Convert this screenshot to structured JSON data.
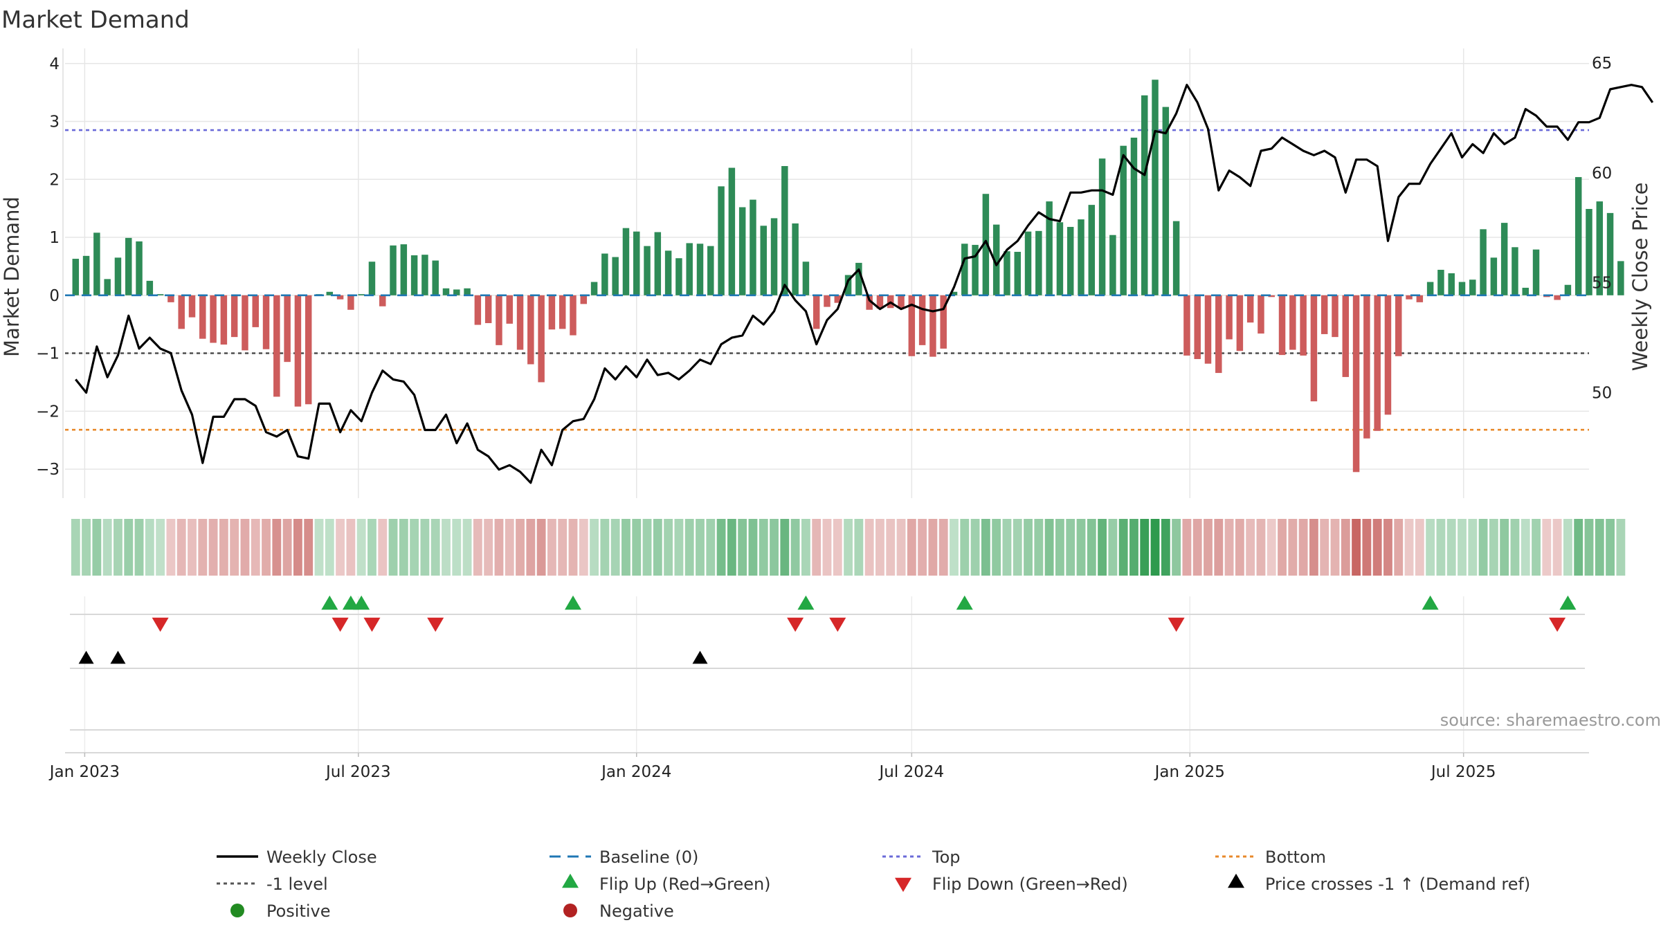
{
  "chart_data": {
    "type": "bar",
    "title": "Market Demand",
    "ylabel_left": "Market Demand",
    "ylabel_right": "Weekly Close Price",
    "y_left_range": [
      -3.5,
      4.2
    ],
    "y_right_range": [
      45.2,
      65.5
    ],
    "y_left_ticks": [
      4,
      3,
      2,
      1,
      0,
      -1,
      -2,
      -3
    ],
    "y_left_tick_labels": [
      "4",
      "3",
      "2",
      "1",
      "0",
      "−1",
      "−2",
      "−3"
    ],
    "y_right_ticks": [
      65,
      60,
      55,
      50
    ],
    "y_right_tick_labels": [
      "65",
      "60",
      "55",
      "50"
    ],
    "x_date_range": [
      "2022-12-19",
      "2025-09-22"
    ],
    "x_ticks": [
      {
        "date": "2023-01-01",
        "label": "Jan 2023"
      },
      {
        "date": "2023-07-01",
        "label": "Jul 2023"
      },
      {
        "date": "2024-01-01",
        "label": "Jan 2024"
      },
      {
        "date": "2024-07-01",
        "label": "Jul 2024"
      },
      {
        "date": "2025-01-01",
        "label": "Jan 2025"
      },
      {
        "date": "2025-07-01",
        "label": "Jul 2025"
      }
    ],
    "series": [
      {
        "name": "Market Demand",
        "start_date": "2022-12-26",
        "step_days": 7,
        "values": [
          0.63,
          0.68,
          1.08,
          0.28,
          0.65,
          0.99,
          0.93,
          0.25,
          0.02,
          -0.12,
          -0.58,
          -0.38,
          -0.75,
          -0.82,
          -0.85,
          -0.72,
          -0.95,
          -0.55,
          -0.93,
          -1.75,
          -1.15,
          -1.92,
          -1.88,
          0.02,
          0.06,
          -0.07,
          -0.25,
          0.02,
          0.58,
          -0.19,
          0.86,
          0.88,
          0.69,
          0.7,
          0.6,
          0.12,
          0.1,
          0.12,
          -0.51,
          -0.48,
          -0.86,
          -0.49,
          -0.94,
          -1.19,
          -1.5,
          -0.59,
          -0.58,
          -0.69,
          -0.15,
          0.23,
          0.72,
          0.66,
          1.16,
          1.1,
          0.85,
          1.09,
          0.77,
          0.64,
          0.9,
          0.89,
          0.85,
          1.88,
          2.2,
          1.52,
          1.65,
          1.2,
          1.33,
          2.23,
          1.24,
          0.58,
          -0.58,
          -0.2,
          -0.13,
          0.35,
          0.56,
          -0.25,
          -0.23,
          -0.22,
          -0.22,
          -1.05,
          -0.86,
          -1.06,
          -0.92,
          0.06,
          0.89,
          0.87,
          1.75,
          1.22,
          0.76,
          0.75,
          1.1,
          1.11,
          1.62,
          1.26,
          1.18,
          1.31,
          1.56,
          2.36,
          1.04,
          2.58,
          2.72,
          3.45,
          3.72,
          3.25,
          1.28,
          -1.04,
          -1.1,
          -1.18,
          -1.34,
          -0.76,
          -0.96,
          -0.47,
          -0.66,
          -0.03,
          -1.03,
          -0.94,
          -1.04,
          -1.83,
          -0.67,
          -0.72,
          -1.41,
          -3.05,
          -2.47,
          -2.34,
          -2.06,
          -1.05,
          -0.07,
          -0.12,
          0.23,
          0.44,
          0.38,
          0.23,
          0.27,
          1.14,
          0.65,
          1.25,
          0.83,
          0.13,
          0.79,
          -0.03,
          -0.08,
          0.18,
          2.04,
          1.49,
          1.62,
          1.42,
          0.59
        ]
      },
      {
        "name": "Weekly Close",
        "axis": "right",
        "start_date": "2022-12-26",
        "step_days": 7,
        "values": [
          50.6,
          50.0,
          52.1,
          50.7,
          51.7,
          53.5,
          52.0,
          52.5,
          52.0,
          51.8,
          50.1,
          49.0,
          46.8,
          48.9,
          48.9,
          49.7,
          49.7,
          49.4,
          48.2,
          48.0,
          48.3,
          47.1,
          47.0,
          49.5,
          49.5,
          48.2,
          49.2,
          48.7,
          50.0,
          51.0,
          50.6,
          50.5,
          49.9,
          48.3,
          48.3,
          49.0,
          47.7,
          48.6,
          47.4,
          47.1,
          46.5,
          46.7,
          46.4,
          45.9,
          47.4,
          46.7,
          48.3,
          48.7,
          48.8,
          49.7,
          51.1,
          50.6,
          51.2,
          50.7,
          51.5,
          50.8,
          50.9,
          50.6,
          51.0,
          51.5,
          51.3,
          52.2,
          52.5,
          52.6,
          53.5,
          53.1,
          53.7,
          54.9,
          54.2,
          53.7,
          52.2,
          53.3,
          53.8,
          55.1,
          55.6,
          54.2,
          53.8,
          54.1,
          53.8,
          54.0,
          53.8,
          53.7,
          53.8,
          54.8,
          56.1,
          56.2,
          56.9,
          55.8,
          56.5,
          56.9,
          57.6,
          58.2,
          57.9,
          57.8,
          59.1,
          59.1,
          59.2,
          59.2,
          59.0,
          60.8,
          60.2,
          59.9,
          61.9,
          61.8,
          62.7,
          64.0,
          63.2,
          62.0,
          59.2,
          60.1,
          59.8,
          59.4,
          61.0,
          61.1,
          61.6,
          61.3,
          61.0,
          60.8,
          61.0,
          60.7,
          59.1,
          60.6,
          60.6,
          60.3,
          56.9,
          58.9,
          59.5,
          59.5,
          60.4,
          61.1,
          61.8,
          60.7,
          61.3,
          60.9,
          61.8,
          61.3,
          61.6,
          62.9,
          62.6,
          62.1,
          62.1,
          61.5,
          62.3,
          62.3,
          62.5,
          63.8,
          63.9,
          64.0,
          63.9,
          63.2
        ]
      }
    ],
    "reference_lines": [
      {
        "name": "Baseline (0)",
        "value": 0,
        "color": "#1f77b4",
        "style": "dashed"
      },
      {
        "name": "Top",
        "value": 2.85,
        "color": "#6a6ad8",
        "style": "dotted"
      },
      {
        "name": "Bottom",
        "value": -2.32,
        "color": "#e8892a",
        "style": "dotted"
      },
      {
        "name": "-1 level",
        "value": -1,
        "color": "#555555",
        "style": "dotted"
      }
    ],
    "events": {
      "flip_up": [
        24,
        26,
        27,
        47,
        69,
        84,
        128,
        141
      ],
      "flip_down": [
        8,
        25,
        28,
        34,
        68,
        72,
        104,
        140
      ],
      "price_cross": [
        1,
        4,
        59
      ]
    },
    "colors": {
      "positive": "#2e8b57",
      "negative": "#cd5c5c",
      "price": "#000000",
      "flip_up": "#22a843",
      "flip_down": "#d62728",
      "legend_positive": "#228b22",
      "legend_negative": "#b22222",
      "grid": "#e6e6e6"
    },
    "legend": [
      {
        "label": "Weekly Close",
        "marker": "solid-line",
        "color": "#000000"
      },
      {
        "label": "Baseline (0)",
        "marker": "dash-line",
        "color": "#1f77b4"
      },
      {
        "label": "Top",
        "marker": "dot-line",
        "color": "#6a6ad8"
      },
      {
        "label": "Bottom",
        "marker": "dot-line",
        "color": "#e8892a"
      },
      {
        "label": "-1 level",
        "marker": "dot-line",
        "color": "#555555"
      },
      {
        "label": "Flip Up (Red→Green)",
        "marker": "triangle-up",
        "color": "#22a843"
      },
      {
        "label": "Flip Down (Green→Red)",
        "marker": "triangle-down",
        "color": "#d62728"
      },
      {
        "label": "Price crosses -1 ↑ (Demand ref)",
        "marker": "triangle-up",
        "color": "#000000"
      },
      {
        "label": "Positive",
        "marker": "circle",
        "color": "#228b22"
      },
      {
        "label": "Negative",
        "marker": "circle",
        "color": "#b22222"
      }
    ],
    "source": "source: sharemaestro.com"
  }
}
